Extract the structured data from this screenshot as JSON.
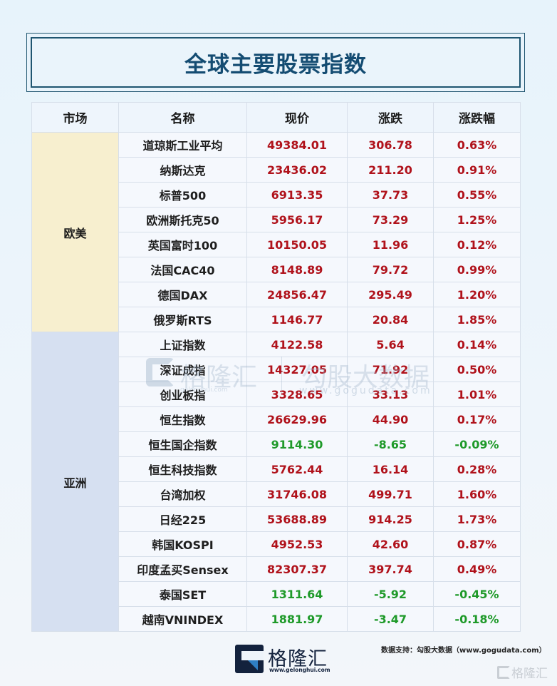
{
  "title": "全球主要股票指数",
  "table": {
    "headers": [
      "市场",
      "名称",
      "现价",
      "涨跌",
      "涨跌幅"
    ],
    "groups": [
      {
        "market": "欧美",
        "color": "#f7efcf"
      },
      {
        "market": "亚洲",
        "color": "#d6e0f1"
      }
    ],
    "rows": [
      {
        "name": "道琼斯工业平均",
        "price": "49384.01",
        "change": "306.78",
        "pct": "0.63%",
        "dir": "up"
      },
      {
        "name": "纳斯达克",
        "price": "23436.02",
        "change": "211.20",
        "pct": "0.91%",
        "dir": "up"
      },
      {
        "name": "标普500",
        "price": "6913.35",
        "change": "37.73",
        "pct": "0.55%",
        "dir": "up"
      },
      {
        "name": "欧洲斯托克50",
        "price": "5956.17",
        "change": "73.29",
        "pct": "1.25%",
        "dir": "up"
      },
      {
        "name": "英国富时100",
        "price": "10150.05",
        "change": "11.96",
        "pct": "0.12%",
        "dir": "up"
      },
      {
        "name": "法国CAC40",
        "price": "8148.89",
        "change": "79.72",
        "pct": "0.99%",
        "dir": "up"
      },
      {
        "name": "德国DAX",
        "price": "24856.47",
        "change": "295.49",
        "pct": "1.20%",
        "dir": "up"
      },
      {
        "name": "俄罗斯RTS",
        "price": "1146.77",
        "change": "20.84",
        "pct": "1.85%",
        "dir": "up"
      },
      {
        "name": "上证指数",
        "price": "4122.58",
        "change": "5.64",
        "pct": "0.14%",
        "dir": "up"
      },
      {
        "name": "深证成指",
        "price": "14327.05",
        "change": "71.92",
        "pct": "0.50%",
        "dir": "up"
      },
      {
        "name": "创业板指",
        "price": "3328.65",
        "change": "33.13",
        "pct": "1.01%",
        "dir": "up"
      },
      {
        "name": "恒生指数",
        "price": "26629.96",
        "change": "44.90",
        "pct": "0.17%",
        "dir": "up"
      },
      {
        "name": "恒生国企指数",
        "price": "9114.30",
        "change": "-8.65",
        "pct": "-0.09%",
        "dir": "down"
      },
      {
        "name": "恒生科技指数",
        "price": "5762.44",
        "change": "16.14",
        "pct": "0.28%",
        "dir": "up"
      },
      {
        "name": "台湾加权",
        "price": "31746.08",
        "change": "499.71",
        "pct": "1.60%",
        "dir": "up"
      },
      {
        "name": "日经225",
        "price": "53688.89",
        "change": "914.25",
        "pct": "1.73%",
        "dir": "up"
      },
      {
        "name": "韩国KOSPI",
        "price": "4952.53",
        "change": "42.60",
        "pct": "0.87%",
        "dir": "up"
      },
      {
        "name": "印度孟买Sensex",
        "price": "82307.37",
        "change": "397.74",
        "pct": "0.49%",
        "dir": "up"
      },
      {
        "name": "泰国SET",
        "price": "1311.64",
        "change": "-5.92",
        "pct": "-0.45%",
        "dir": "down"
      },
      {
        "name": "越南VNINDEX",
        "price": "1881.97",
        "change": "-3.47",
        "pct": "-0.18%",
        "dir": "down"
      }
    ]
  },
  "colors": {
    "up": "#b0121b",
    "down": "#1f9a2a",
    "title": "#144c72"
  },
  "watermark": {
    "brand": "格隆汇",
    "brand_url": "gelonghui.com",
    "data_brand": "勾股大数据",
    "data_url": "www.gogudata.com"
  },
  "footer": {
    "logo_text": "格隆汇",
    "logo_url": "www.gelonghui.com",
    "source": "数据支持：勾股大数据（www.gogudata.com）",
    "corner_mark": "格隆汇"
  }
}
